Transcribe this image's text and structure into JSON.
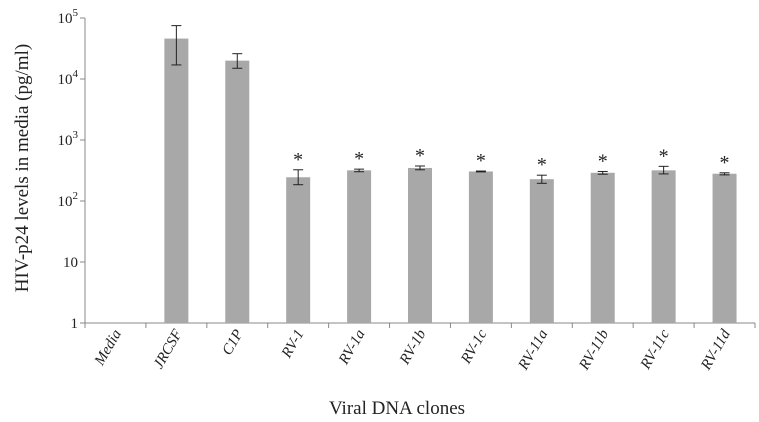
{
  "chart_data": {
    "type": "bar",
    "yscale": "log",
    "ylim": [
      1,
      100000
    ],
    "ylabel": "HIV-p24 levels in media (pg/ml)",
    "xlabel": "Viral DNA clones",
    "y_ticks": [
      {
        "value": 1,
        "label": "1"
      },
      {
        "value": 10,
        "label": "10"
      },
      {
        "value": 100,
        "base": "10",
        "exp": "2"
      },
      {
        "value": 1000,
        "base": "10",
        "exp": "3"
      },
      {
        "value": 10000,
        "base": "10",
        "exp": "4"
      },
      {
        "value": 100000,
        "base": "10",
        "exp": "5"
      }
    ],
    "categories": [
      "Media",
      "JRCSF",
      "C1P",
      "RV-1",
      "RV-1a",
      "RV-1b",
      "RV-1c",
      "RV-11a",
      "RV-11b",
      "RV-11c",
      "RV-11d"
    ],
    "values": [
      null,
      46000,
      20000,
      245,
      318,
      348,
      305,
      228,
      290,
      318,
      280
    ],
    "error_low": [
      null,
      17000,
      15000,
      185,
      302,
      325,
      300,
      195,
      275,
      278,
      268
    ],
    "error_high": [
      null,
      75000,
      26000,
      325,
      333,
      375,
      310,
      265,
      305,
      370,
      290
    ],
    "significance": [
      "",
      "",
      "",
      "*",
      "*",
      "*",
      "*",
      "*",
      "*",
      "*",
      "*"
    ],
    "bar_color": "#a8a8a8",
    "axis_color": "#888888",
    "grid": false,
    "legend": "none"
  }
}
